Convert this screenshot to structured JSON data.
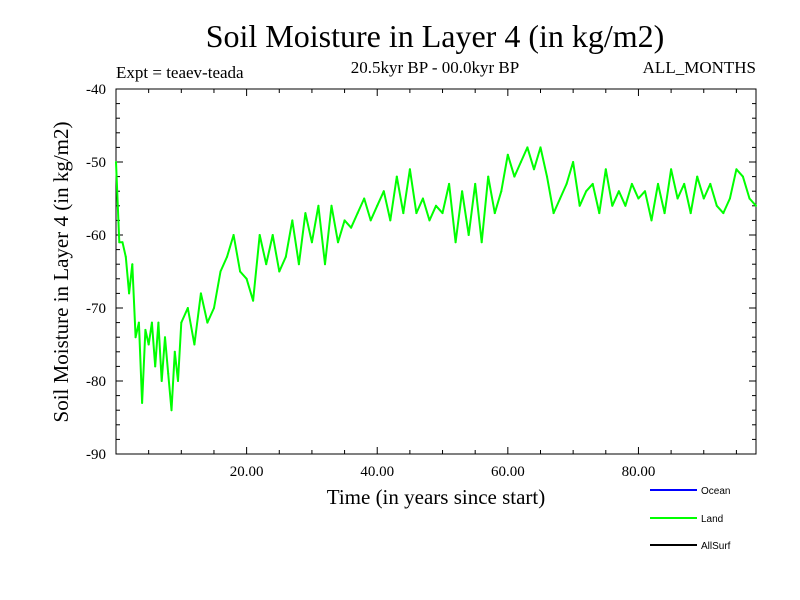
{
  "chart_data": {
    "type": "line",
    "title": "Soil Moisture in Layer 4 (in kg/m2)",
    "subtitle": "20.5kyr BP - 00.0kyr BP",
    "left_label": "Expt = teaev-teada",
    "right_label": "ALL_MONTHS",
    "xlabel": "Time (in years since start)",
    "ylabel": "Soil Moisture in Layer 4 (in kg/m2)",
    "xlim": [
      0,
      98
    ],
    "ylim": [
      -90,
      -40
    ],
    "grid": false,
    "x_ticks": [
      {
        "value": 20,
        "label": "20.00"
      },
      {
        "value": 40,
        "label": "40.00"
      },
      {
        "value": 60,
        "label": "60.00"
      },
      {
        "value": 80,
        "label": "80.00"
      }
    ],
    "y_ticks": [
      {
        "value": -40,
        "label": "-40"
      },
      {
        "value": -50,
        "label": "-50"
      },
      {
        "value": -60,
        "label": "-60"
      },
      {
        "value": -70,
        "label": "-70"
      },
      {
        "value": -80,
        "label": "-80"
      },
      {
        "value": -90,
        "label": "-90"
      }
    ],
    "legend": {
      "placement": "bottom-right",
      "entries": [
        {
          "name": "Ocean",
          "color": "#0000ff"
        },
        {
          "name": "Land",
          "color": "#00ff00"
        },
        {
          "name": "AllSurf",
          "color": "#000000"
        }
      ]
    },
    "series": [
      {
        "name": "Land",
        "color": "#00ff00",
        "x": [
          0,
          0.5,
          1,
          1.5,
          2,
          2.5,
          3,
          3.5,
          4,
          4.5,
          5,
          5.5,
          6,
          6.5,
          7,
          7.5,
          8,
          8.5,
          9,
          9.5,
          10,
          11,
          12,
          13,
          14,
          15,
          16,
          17,
          18,
          19,
          20,
          21,
          22,
          23,
          24,
          25,
          26,
          27,
          28,
          29,
          30,
          31,
          32,
          33,
          34,
          35,
          36,
          37,
          38,
          39,
          40,
          41,
          42,
          43,
          44,
          45,
          46,
          47,
          48,
          49,
          50,
          51,
          52,
          53,
          54,
          55,
          56,
          57,
          58,
          59,
          60,
          61,
          62,
          63,
          64,
          65,
          66,
          67,
          68,
          69,
          70,
          71,
          72,
          73,
          74,
          75,
          76,
          77,
          78,
          79,
          80,
          81,
          82,
          83,
          84,
          85,
          86,
          87,
          88,
          89,
          90,
          91,
          92,
          93,
          94,
          95,
          96,
          97,
          98
        ],
        "values": [
          -50,
          -61,
          -61,
          -63,
          -68,
          -64,
          -74,
          -72,
          -83,
          -73,
          -75,
          -72,
          -78,
          -72,
          -80,
          -74,
          -79,
          -84,
          -76,
          -80,
          -72,
          -70,
          -75,
          -68,
          -72,
          -70,
          -65,
          -63,
          -60,
          -65,
          -66,
          -69,
          -60,
          -64,
          -60,
          -65,
          -63,
          -58,
          -64,
          -57,
          -61,
          -56,
          -64,
          -56,
          -61,
          -58,
          -59,
          -57,
          -55,
          -58,
          -56,
          -54,
          -58,
          -52,
          -57,
          -51,
          -57,
          -55,
          -58,
          -56,
          -57,
          -53,
          -61,
          -54,
          -60,
          -53,
          -61,
          -52,
          -57,
          -54,
          -49,
          -52,
          -50,
          -48,
          -51,
          -48,
          -52,
          -57,
          -55,
          -53,
          -50,
          -56,
          -54,
          -53,
          -57,
          -51,
          -56,
          -54,
          -56,
          -53,
          -55,
          -54,
          -58,
          -53,
          -57,
          -51,
          -55,
          -53,
          -57,
          -52,
          -55,
          -53,
          -56,
          -57,
          -55,
          -51,
          -52,
          -55,
          -56
        ]
      }
    ]
  }
}
